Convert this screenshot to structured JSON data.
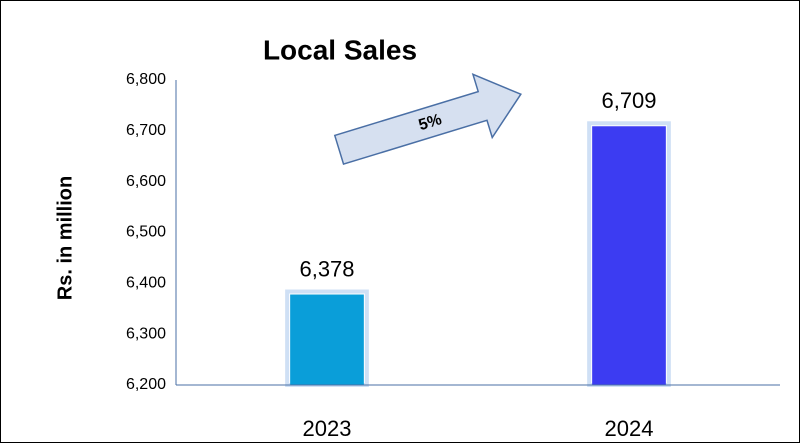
{
  "chart_data": {
    "type": "bar",
    "title": "Local Sales",
    "y_label": "Rs. in million",
    "categories": [
      "2023",
      "2024"
    ],
    "values": [
      6378,
      6709
    ],
    "value_labels": [
      "6,378",
      "6,709"
    ],
    "colors": [
      "#0a9ed9",
      "#3c3cf2"
    ],
    "annotation": "5%",
    "ylim": [
      6200,
      6800
    ],
    "yticks": [
      {
        "value": 6200,
        "label": "6,200"
      },
      {
        "value": 6300,
        "label": "6,300"
      },
      {
        "value": 6400,
        "label": "6,400"
      },
      {
        "value": 6500,
        "label": "6,500"
      },
      {
        "value": 6600,
        "label": "6,600"
      },
      {
        "value": 6700,
        "label": "6,700"
      },
      {
        "value": 6800,
        "label": "6,800"
      }
    ],
    "grid": false
  }
}
